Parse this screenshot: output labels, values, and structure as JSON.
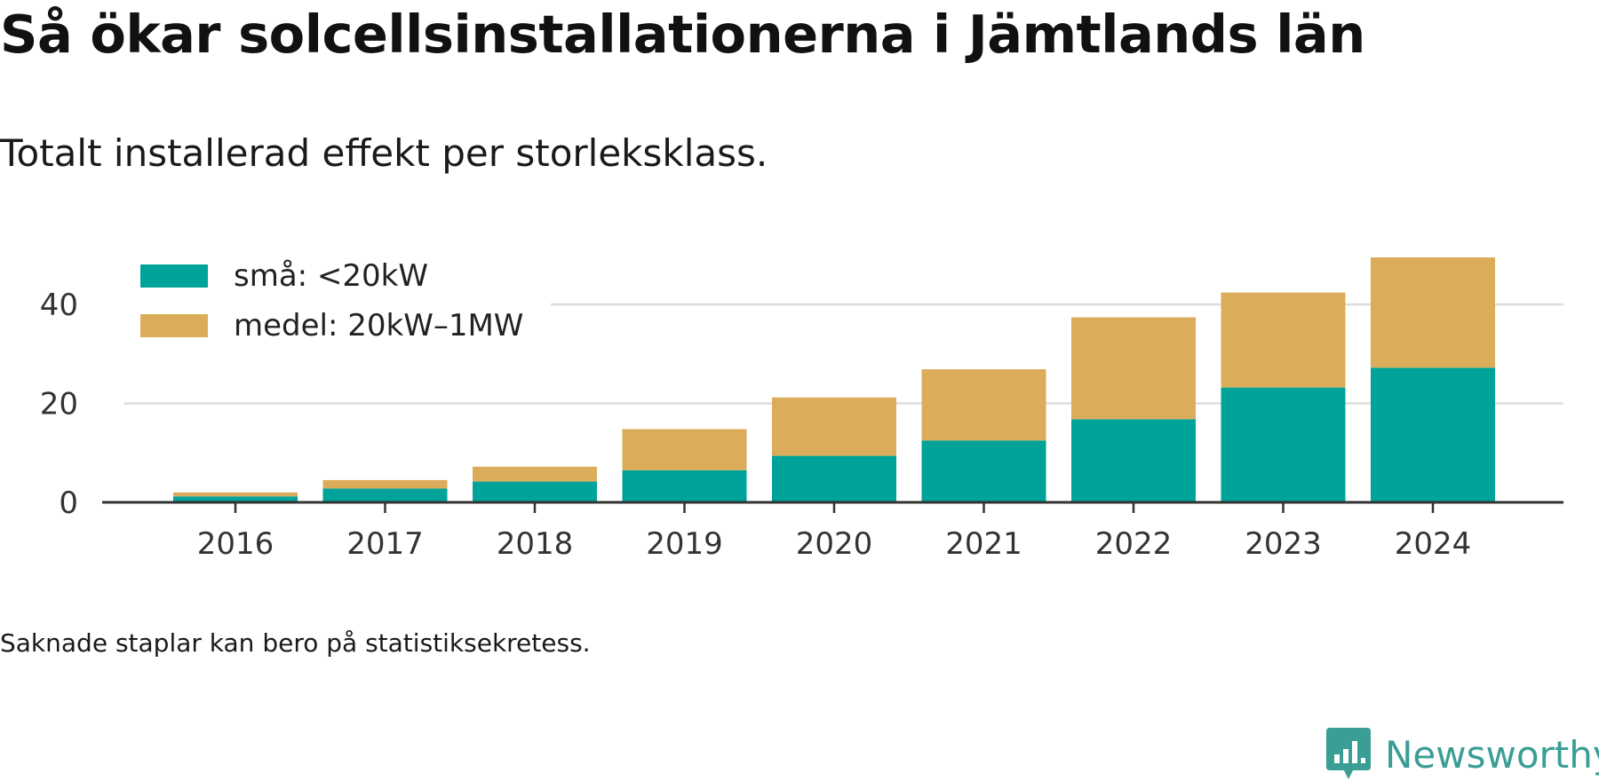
{
  "title": "Så ökar solcellsinstallationerna i Jämtlands län",
  "subtitle": "Totalt installerad effekt per storleksklass.",
  "note": "Saknade staplar kan bero på statistiksekretess.",
  "brand": {
    "name": "Newsworthy",
    "icon": "newsworthy-logo-icon",
    "color": "#3a9e95"
  },
  "chart_data": {
    "type": "bar",
    "stacked": true,
    "categories": [
      "2016",
      "2017",
      "2018",
      "2019",
      "2020",
      "2021",
      "2022",
      "2023",
      "2024"
    ],
    "series": [
      {
        "name": "små: <20kW",
        "color": "#00a399",
        "values": [
          1.2,
          2.8,
          4.2,
          6.5,
          9.4,
          12.5,
          16.8,
          23.2,
          27.2
        ]
      },
      {
        "name": "medel: 20kW–1MW",
        "color": "#dbad5a",
        "values": [
          0.8,
          1.7,
          3.0,
          8.3,
          11.8,
          14.4,
          20.6,
          19.2,
          22.3
        ]
      }
    ],
    "yticks": [
      0,
      20,
      40
    ],
    "ylim": [
      0,
      52
    ],
    "grid": true,
    "legend_position": "top-left"
  }
}
